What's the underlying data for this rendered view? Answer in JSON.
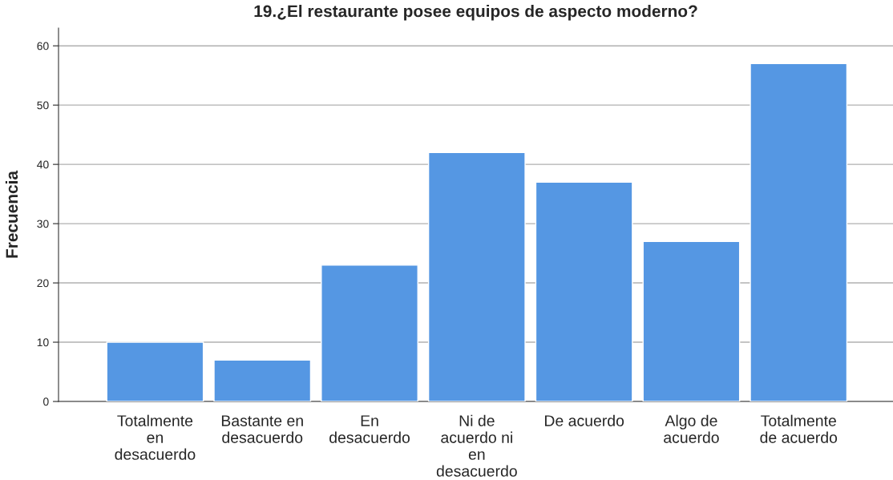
{
  "chart_data": {
    "type": "bar",
    "title": "19.¿El restaurante posee equipos de aspecto moderno?",
    "ylabel": "Frecuencia",
    "categories": [
      "Totalmente en desacuerdo",
      "Bastante en desacuerdo",
      "En desacuerdo",
      "Ni de acuerdo ni en desacuerdo",
      "De acuerdo",
      "Algo de acuerdo",
      "Totalmente de acuerdo"
    ],
    "values": [
      10,
      7,
      23,
      42,
      37,
      27,
      57
    ],
    "color": "#5597e3",
    "ylim": [
      0,
      63
    ],
    "yticks": [
      0,
      10,
      20,
      30,
      40,
      50,
      60
    ],
    "grid": "y"
  }
}
